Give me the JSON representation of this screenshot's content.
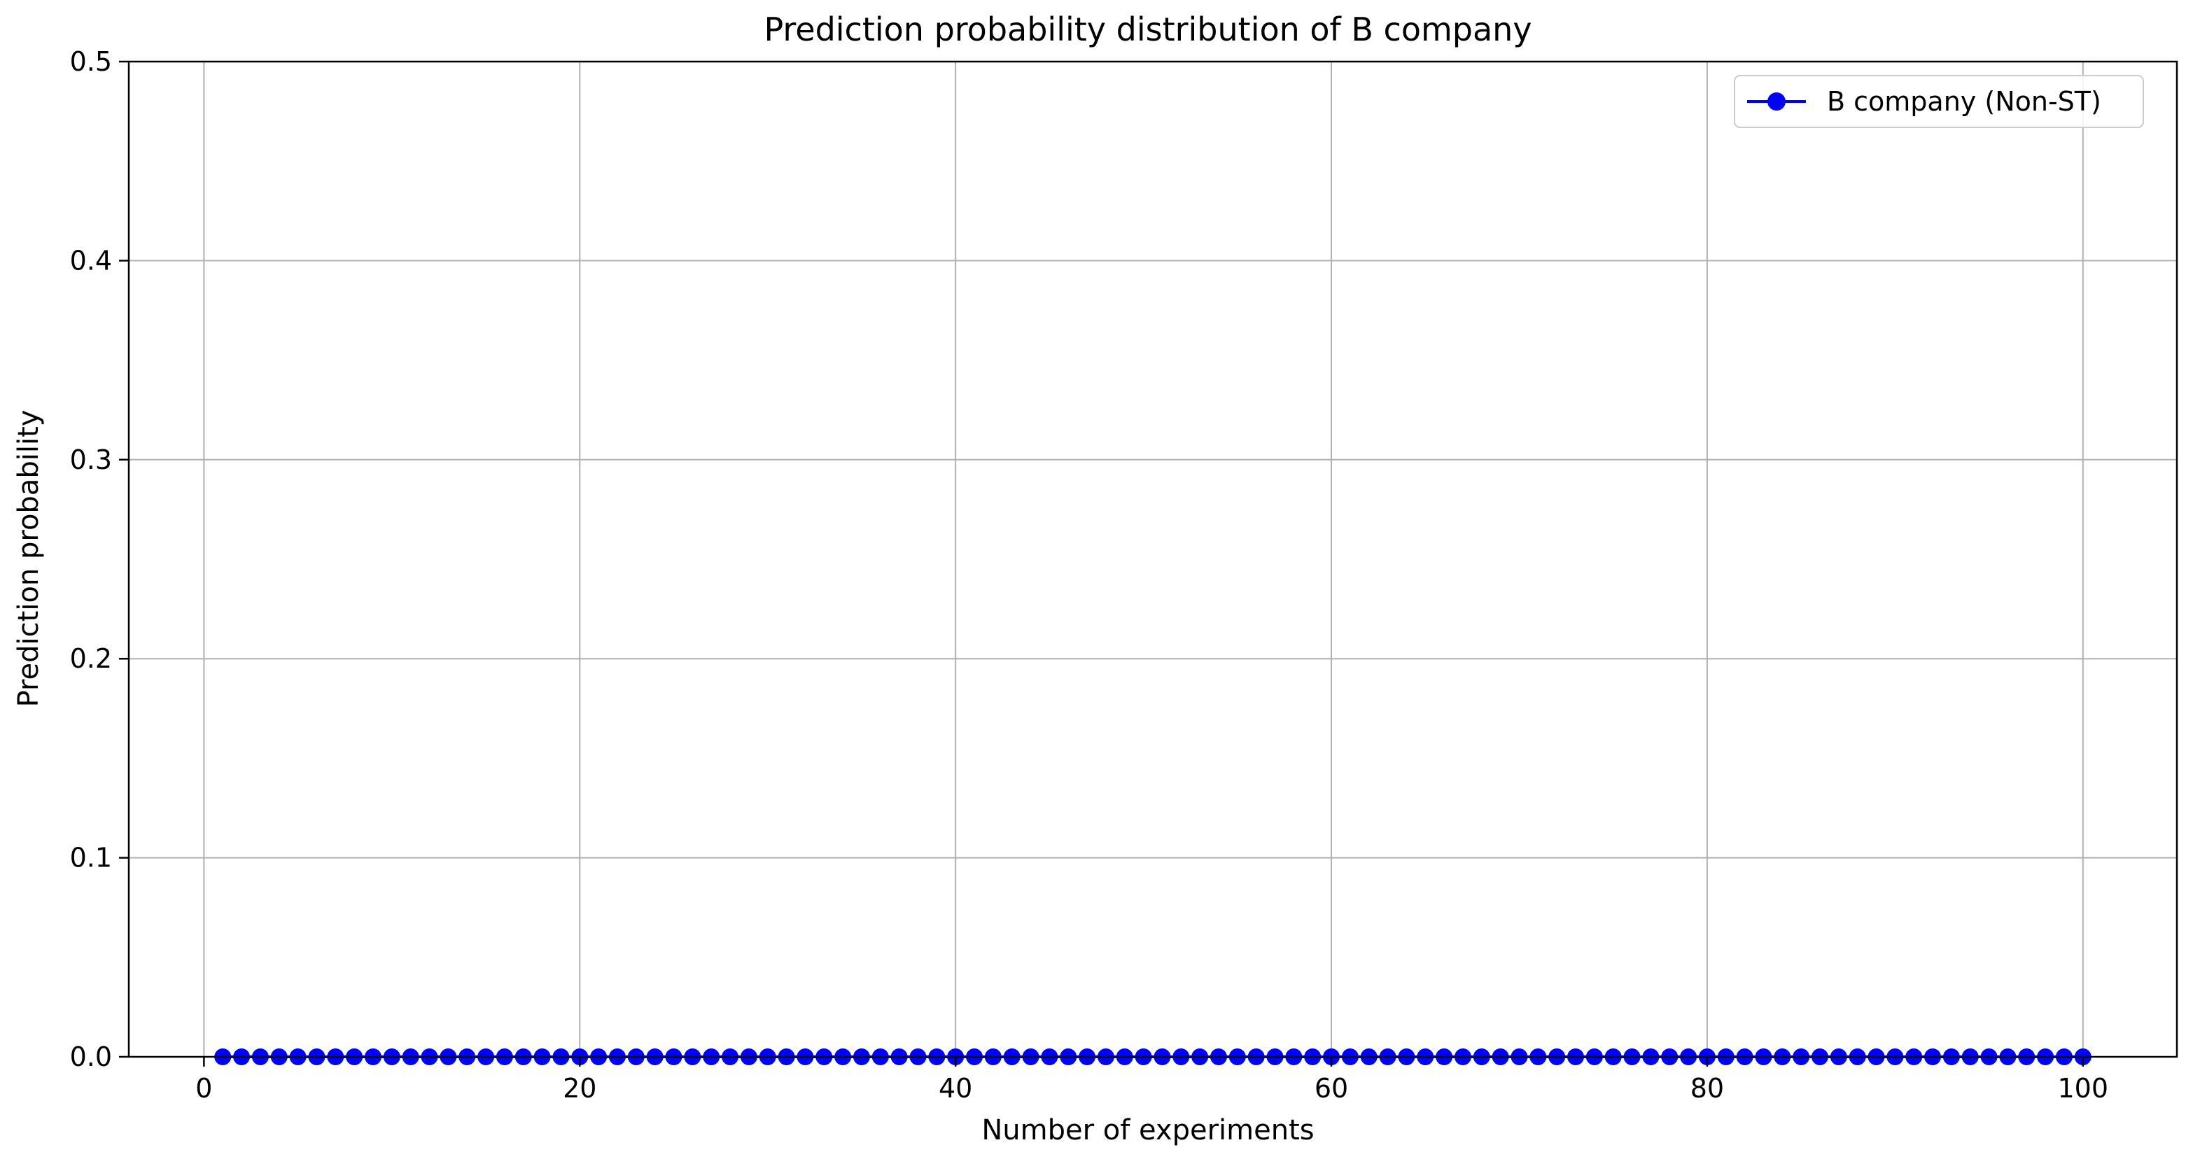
{
  "chart_data": {
    "type": "line",
    "title": "Prediction probability distribution of B company",
    "xlabel": "Number of experiments",
    "ylabel": "Prediction probability",
    "xlim": [
      -4,
      105
    ],
    "ylim": [
      0,
      0.5
    ],
    "xticks": [
      0,
      20,
      40,
      60,
      80,
      100
    ],
    "xtick_labels": [
      "0",
      "20",
      "40",
      "60",
      "80",
      "100"
    ],
    "yticks": [
      0,
      0.1,
      0.2,
      0.3,
      0.4,
      0.5
    ],
    "ytick_labels": [
      "0.0",
      "0.1",
      "0.2",
      "0.3",
      "0.4",
      "0.5"
    ],
    "grid": true,
    "legend_position": "top-right",
    "series": [
      {
        "name": "B company (Non-ST)",
        "color": "#0000ff",
        "marker": "circle",
        "x": [
          1,
          2,
          3,
          4,
          5,
          6,
          7,
          8,
          9,
          10,
          11,
          12,
          13,
          14,
          15,
          16,
          17,
          18,
          19,
          20,
          21,
          22,
          23,
          24,
          25,
          26,
          27,
          28,
          29,
          30,
          31,
          32,
          33,
          34,
          35,
          36,
          37,
          38,
          39,
          40,
          41,
          42,
          43,
          44,
          45,
          46,
          47,
          48,
          49,
          50,
          51,
          52,
          53,
          54,
          55,
          56,
          57,
          58,
          59,
          60,
          61,
          62,
          63,
          64,
          65,
          66,
          67,
          68,
          69,
          70,
          71,
          72,
          73,
          74,
          75,
          76,
          77,
          78,
          79,
          80,
          81,
          82,
          83,
          84,
          85,
          86,
          87,
          88,
          89,
          90,
          91,
          92,
          93,
          94,
          95,
          96,
          97,
          98,
          99,
          100
        ],
        "y": [
          0,
          0,
          0,
          0,
          0,
          0,
          0,
          0,
          0,
          0,
          0,
          0,
          0,
          0,
          0,
          0,
          0,
          0,
          0,
          0,
          0,
          0,
          0,
          0,
          0,
          0,
          0,
          0,
          0,
          0,
          0,
          0,
          0,
          0,
          0,
          0,
          0,
          0,
          0,
          0,
          0,
          0,
          0,
          0,
          0,
          0,
          0,
          0,
          0,
          0,
          0,
          0,
          0,
          0,
          0,
          0,
          0,
          0,
          0,
          0,
          0,
          0,
          0,
          0,
          0,
          0,
          0,
          0,
          0,
          0,
          0,
          0,
          0,
          0,
          0,
          0,
          0,
          0,
          0,
          0,
          0,
          0,
          0,
          0,
          0,
          0,
          0,
          0,
          0,
          0,
          0,
          0,
          0,
          0,
          0,
          0,
          0,
          0,
          0,
          0
        ]
      }
    ]
  }
}
